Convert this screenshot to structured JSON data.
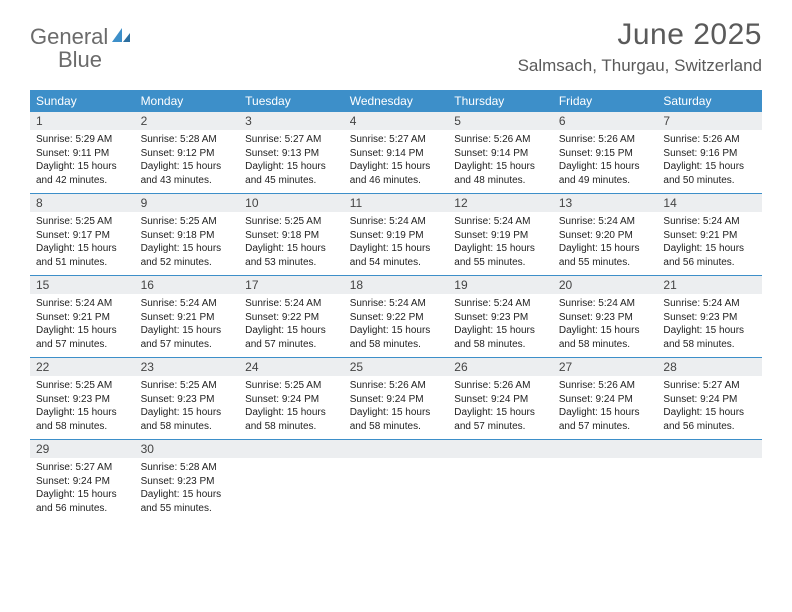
{
  "brand": {
    "word1": "General",
    "word2": "Blue"
  },
  "title": "June 2025",
  "location": "Salmsach, Thurgau, Switzerland",
  "colors": {
    "header_bar": "#3d8fc9",
    "daynum_bg": "#eceef0",
    "text": "#222222",
    "title_text": "#5a5a5a",
    "rule": "#3d8fc9"
  },
  "day_labels": [
    "Sunday",
    "Monday",
    "Tuesday",
    "Wednesday",
    "Thursday",
    "Friday",
    "Saturday"
  ],
  "weeks": [
    [
      {
        "n": "1",
        "sr": "5:29 AM",
        "ss": "9:11 PM",
        "dl": "15 hours and 42 minutes."
      },
      {
        "n": "2",
        "sr": "5:28 AM",
        "ss": "9:12 PM",
        "dl": "15 hours and 43 minutes."
      },
      {
        "n": "3",
        "sr": "5:27 AM",
        "ss": "9:13 PM",
        "dl": "15 hours and 45 minutes."
      },
      {
        "n": "4",
        "sr": "5:27 AM",
        "ss": "9:14 PM",
        "dl": "15 hours and 46 minutes."
      },
      {
        "n": "5",
        "sr": "5:26 AM",
        "ss": "9:14 PM",
        "dl": "15 hours and 48 minutes."
      },
      {
        "n": "6",
        "sr": "5:26 AM",
        "ss": "9:15 PM",
        "dl": "15 hours and 49 minutes."
      },
      {
        "n": "7",
        "sr": "5:26 AM",
        "ss": "9:16 PM",
        "dl": "15 hours and 50 minutes."
      }
    ],
    [
      {
        "n": "8",
        "sr": "5:25 AM",
        "ss": "9:17 PM",
        "dl": "15 hours and 51 minutes."
      },
      {
        "n": "9",
        "sr": "5:25 AM",
        "ss": "9:18 PM",
        "dl": "15 hours and 52 minutes."
      },
      {
        "n": "10",
        "sr": "5:25 AM",
        "ss": "9:18 PM",
        "dl": "15 hours and 53 minutes."
      },
      {
        "n": "11",
        "sr": "5:24 AM",
        "ss": "9:19 PM",
        "dl": "15 hours and 54 minutes."
      },
      {
        "n": "12",
        "sr": "5:24 AM",
        "ss": "9:19 PM",
        "dl": "15 hours and 55 minutes."
      },
      {
        "n": "13",
        "sr": "5:24 AM",
        "ss": "9:20 PM",
        "dl": "15 hours and 55 minutes."
      },
      {
        "n": "14",
        "sr": "5:24 AM",
        "ss": "9:21 PM",
        "dl": "15 hours and 56 minutes."
      }
    ],
    [
      {
        "n": "15",
        "sr": "5:24 AM",
        "ss": "9:21 PM",
        "dl": "15 hours and 57 minutes."
      },
      {
        "n": "16",
        "sr": "5:24 AM",
        "ss": "9:21 PM",
        "dl": "15 hours and 57 minutes."
      },
      {
        "n": "17",
        "sr": "5:24 AM",
        "ss": "9:22 PM",
        "dl": "15 hours and 57 minutes."
      },
      {
        "n": "18",
        "sr": "5:24 AM",
        "ss": "9:22 PM",
        "dl": "15 hours and 58 minutes."
      },
      {
        "n": "19",
        "sr": "5:24 AM",
        "ss": "9:23 PM",
        "dl": "15 hours and 58 minutes."
      },
      {
        "n": "20",
        "sr": "5:24 AM",
        "ss": "9:23 PM",
        "dl": "15 hours and 58 minutes."
      },
      {
        "n": "21",
        "sr": "5:24 AM",
        "ss": "9:23 PM",
        "dl": "15 hours and 58 minutes."
      }
    ],
    [
      {
        "n": "22",
        "sr": "5:25 AM",
        "ss": "9:23 PM",
        "dl": "15 hours and 58 minutes."
      },
      {
        "n": "23",
        "sr": "5:25 AM",
        "ss": "9:23 PM",
        "dl": "15 hours and 58 minutes."
      },
      {
        "n": "24",
        "sr": "5:25 AM",
        "ss": "9:24 PM",
        "dl": "15 hours and 58 minutes."
      },
      {
        "n": "25",
        "sr": "5:26 AM",
        "ss": "9:24 PM",
        "dl": "15 hours and 58 minutes."
      },
      {
        "n": "26",
        "sr": "5:26 AM",
        "ss": "9:24 PM",
        "dl": "15 hours and 57 minutes."
      },
      {
        "n": "27",
        "sr": "5:26 AM",
        "ss": "9:24 PM",
        "dl": "15 hours and 57 minutes."
      },
      {
        "n": "28",
        "sr": "5:27 AM",
        "ss": "9:24 PM",
        "dl": "15 hours and 56 minutes."
      }
    ],
    [
      {
        "n": "29",
        "sr": "5:27 AM",
        "ss": "9:24 PM",
        "dl": "15 hours and 56 minutes."
      },
      {
        "n": "30",
        "sr": "5:28 AM",
        "ss": "9:23 PM",
        "dl": "15 hours and 55 minutes."
      },
      null,
      null,
      null,
      null,
      null
    ]
  ],
  "line_prefixes": {
    "sunrise": "Sunrise: ",
    "sunset": "Sunset: ",
    "daylight": "Daylight: "
  }
}
